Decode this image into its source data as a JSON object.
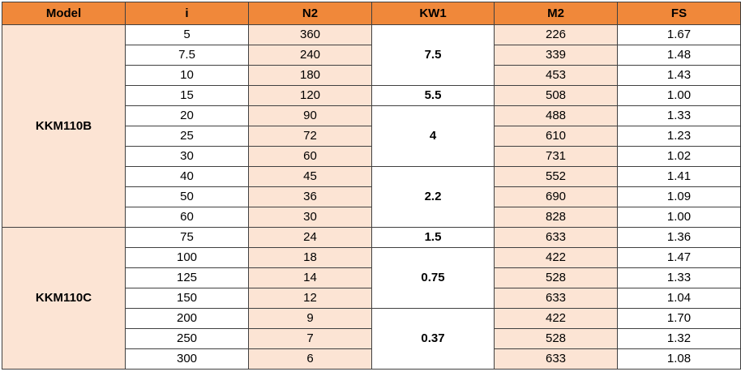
{
  "colors": {
    "header": "#f0883a",
    "shaded": "#fce4d4",
    "plain": "#ffffff"
  },
  "headers": [
    "Model",
    "i",
    "N2",
    "KW1",
    "M2",
    "FS"
  ],
  "models": [
    {
      "name": "KKM110B",
      "rows": [
        {
          "i": "5",
          "n2": "360",
          "m2": "226",
          "fs": "1.67"
        },
        {
          "i": "7.5",
          "n2": "240",
          "m2": "339",
          "fs": "1.48"
        },
        {
          "i": "10",
          "n2": "180",
          "m2": "453",
          "fs": "1.43"
        },
        {
          "i": "15",
          "n2": "120",
          "m2": "508",
          "fs": "1.00"
        },
        {
          "i": "20",
          "n2": "90",
          "m2": "488",
          "fs": "1.33"
        },
        {
          "i": "25",
          "n2": "72",
          "m2": "610",
          "fs": "1.23"
        },
        {
          "i": "30",
          "n2": "60",
          "m2": "731",
          "fs": "1.02"
        },
        {
          "i": "40",
          "n2": "45",
          "m2": "552",
          "fs": "1.41"
        },
        {
          "i": "50",
          "n2": "36",
          "m2": "690",
          "fs": "1.09"
        },
        {
          "i": "60",
          "n2": "30",
          "m2": "828",
          "fs": "1.00"
        }
      ],
      "kw_groups": [
        {
          "value": "7.5",
          "rows": 3
        },
        {
          "value": "5.5",
          "rows": 1
        },
        {
          "value": "4",
          "rows": 3
        },
        {
          "value": "2.2",
          "rows": 3
        }
      ]
    },
    {
      "name": "KKM110C",
      "rows": [
        {
          "i": "75",
          "n2": "24",
          "m2": "633",
          "fs": "1.36"
        },
        {
          "i": "100",
          "n2": "18",
          "m2": "422",
          "fs": "1.47"
        },
        {
          "i": "125",
          "n2": "14",
          "m2": "528",
          "fs": "1.33"
        },
        {
          "i": "150",
          "n2": "12",
          "m2": "633",
          "fs": "1.04"
        },
        {
          "i": "200",
          "n2": "9",
          "m2": "422",
          "fs": "1.70"
        },
        {
          "i": "250",
          "n2": "7",
          "m2": "528",
          "fs": "1.32"
        },
        {
          "i": "300",
          "n2": "6",
          "m2": "633",
          "fs": "1.08"
        }
      ],
      "kw_groups": [
        {
          "value": "1.5",
          "rows": 1
        },
        {
          "value": "0.75",
          "rows": 3
        },
        {
          "value": "0.37",
          "rows": 3
        }
      ]
    }
  ]
}
